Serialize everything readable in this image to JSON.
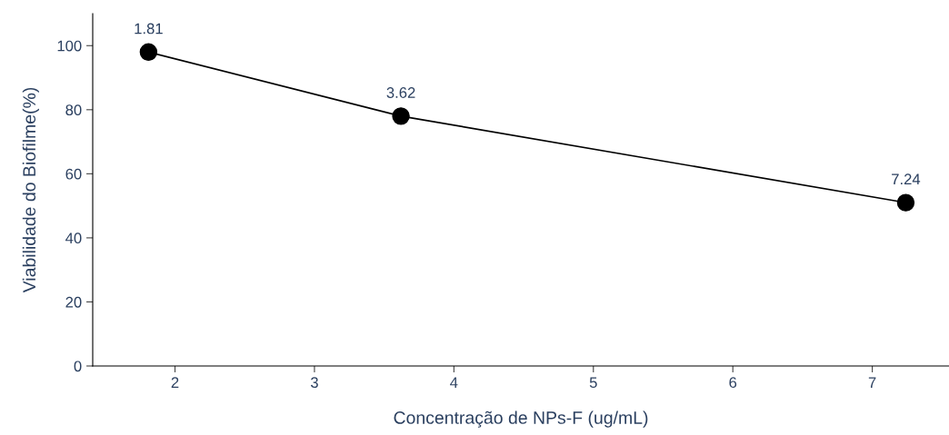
{
  "chart_data": {
    "type": "line",
    "xlabel": "Concentração de NPs-F (ug/mL)",
    "ylabel": "Viabilidade do Biofilme(%)",
    "x": [
      1.81,
      3.62,
      7.24
    ],
    "series": [
      {
        "color": "#000000",
        "values": [
          98,
          78,
          51
        ]
      }
    ],
    "annotations": [
      {
        "text": "1.81",
        "x": 1.81,
        "y": 98
      },
      {
        "text": "3.62",
        "x": 3.62,
        "y": 78
      },
      {
        "text": "7.24",
        "x": 7.24,
        "y": 51
      }
    ],
    "marker": "circle",
    "line_style": "solid",
    "grid": false,
    "legend": false,
    "xlim": [
      1.41,
      7.55
    ],
    "xticks": [
      2,
      3,
      4,
      5,
      6,
      7
    ],
    "ylim": [
      0,
      110
    ],
    "yticks": [
      0,
      20,
      40,
      60,
      80,
      100
    ]
  }
}
